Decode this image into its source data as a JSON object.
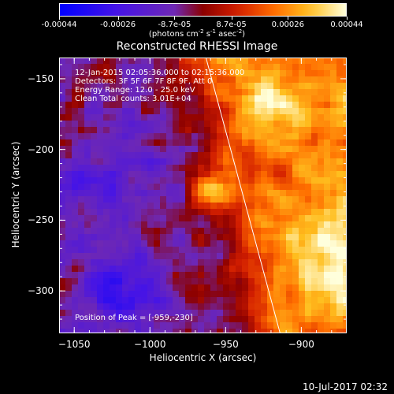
{
  "colorbar": {
    "tick_labels": [
      "-0.00044",
      "-0.00026",
      "-8.7e-05",
      "8.7e-05",
      "0.00026",
      "0.00044"
    ],
    "tick_values": [
      -0.00044,
      -0.00026,
      -8.7e-05,
      8.7e-05,
      0.00026,
      0.00044
    ],
    "units_main": "(photons cm",
    "units_exp1": "-2",
    "units_mid1": " s",
    "units_exp2": "-1",
    "units_mid2": " asec",
    "units_exp3": "-2",
    "units_end": ")"
  },
  "chart_data": {
    "type": "heatmap",
    "title": "Reconstructed RHESSI Image",
    "xlabel": "Heliocentric X (arcsec)",
    "ylabel": "Heliocentric Y (arcsec)",
    "xlim": [
      -1060,
      -870
    ],
    "ylim": [
      -330,
      -135
    ],
    "xticks": [
      -1050,
      -1000,
      -950,
      -900
    ],
    "yticks": [
      -150,
      -200,
      -250,
      -300
    ],
    "colormap": "blue-purple-red-orange-yellow-white",
    "grid": false,
    "limb_line": [
      [
        -963,
        -135
      ],
      [
        -914,
        -330
      ]
    ],
    "annotations": [
      "12-Jan-2015 02:05:36.000 to 02:15:36.000",
      "Detectors: 3F 5F 6F 7F 8F 9F, Att 0",
      "Energy Range: 12.0 - 25.0 keV",
      "Clean     Total counts: 3.01E+04"
    ],
    "peak_label": "Position of Peak = [-959,-230]",
    "peak": [
      -959,
      -230
    ]
  },
  "footer": {
    "timestamp": "10-Jul-2017 02:32"
  }
}
